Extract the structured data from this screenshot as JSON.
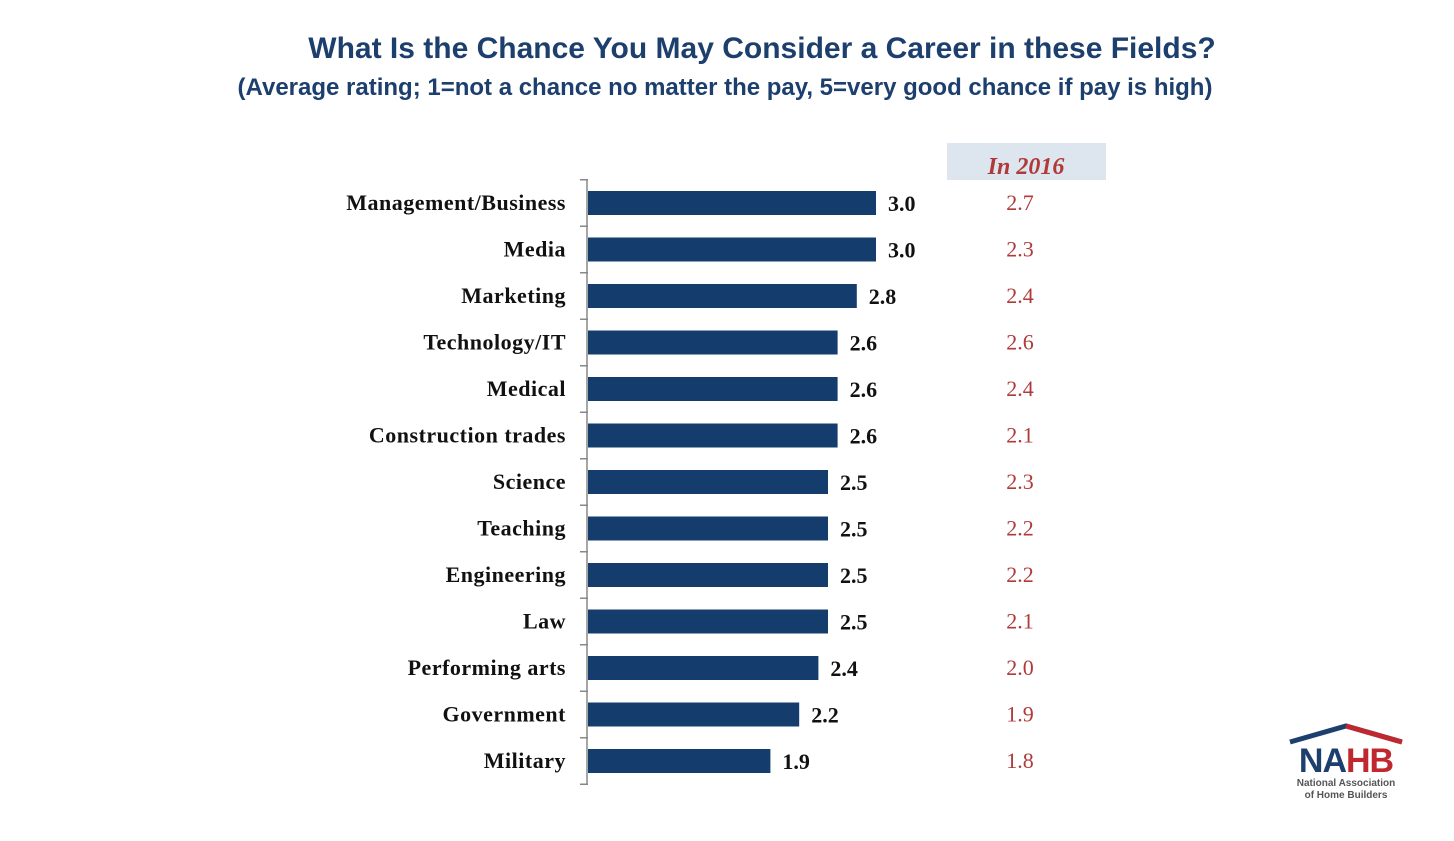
{
  "chart_data": {
    "type": "bar",
    "orientation": "horizontal",
    "title": "What Is the Chance You May Consider a Career in these Fields?",
    "subtitle": "(Average rating; 1=not a chance no matter the pay, 5=very good chance if pay is high)",
    "categories": [
      "Management/Business",
      "Media",
      "Marketing",
      "Technology/IT",
      "Medical",
      "Construction trades",
      "Science",
      "Teaching",
      "Engineering",
      "Law",
      "Performing arts",
      "Government",
      "Military"
    ],
    "values": [
      3.0,
      3.0,
      2.8,
      2.6,
      2.6,
      2.6,
      2.5,
      2.5,
      2.5,
      2.5,
      2.4,
      2.2,
      1.9
    ],
    "comparison_header": "In 2016",
    "comparison_values": [
      2.7,
      2.3,
      2.4,
      2.6,
      2.4,
      2.1,
      2.3,
      2.2,
      2.2,
      2.1,
      2.0,
      1.9,
      1.8
    ],
    "xlim": [
      0,
      3.0
    ],
    "bar_color": "#143d6e",
    "comparison_color": "#b03a3a"
  },
  "logo": {
    "name": "NAHB",
    "line1": "National Association",
    "line2": "of Home Builders"
  }
}
